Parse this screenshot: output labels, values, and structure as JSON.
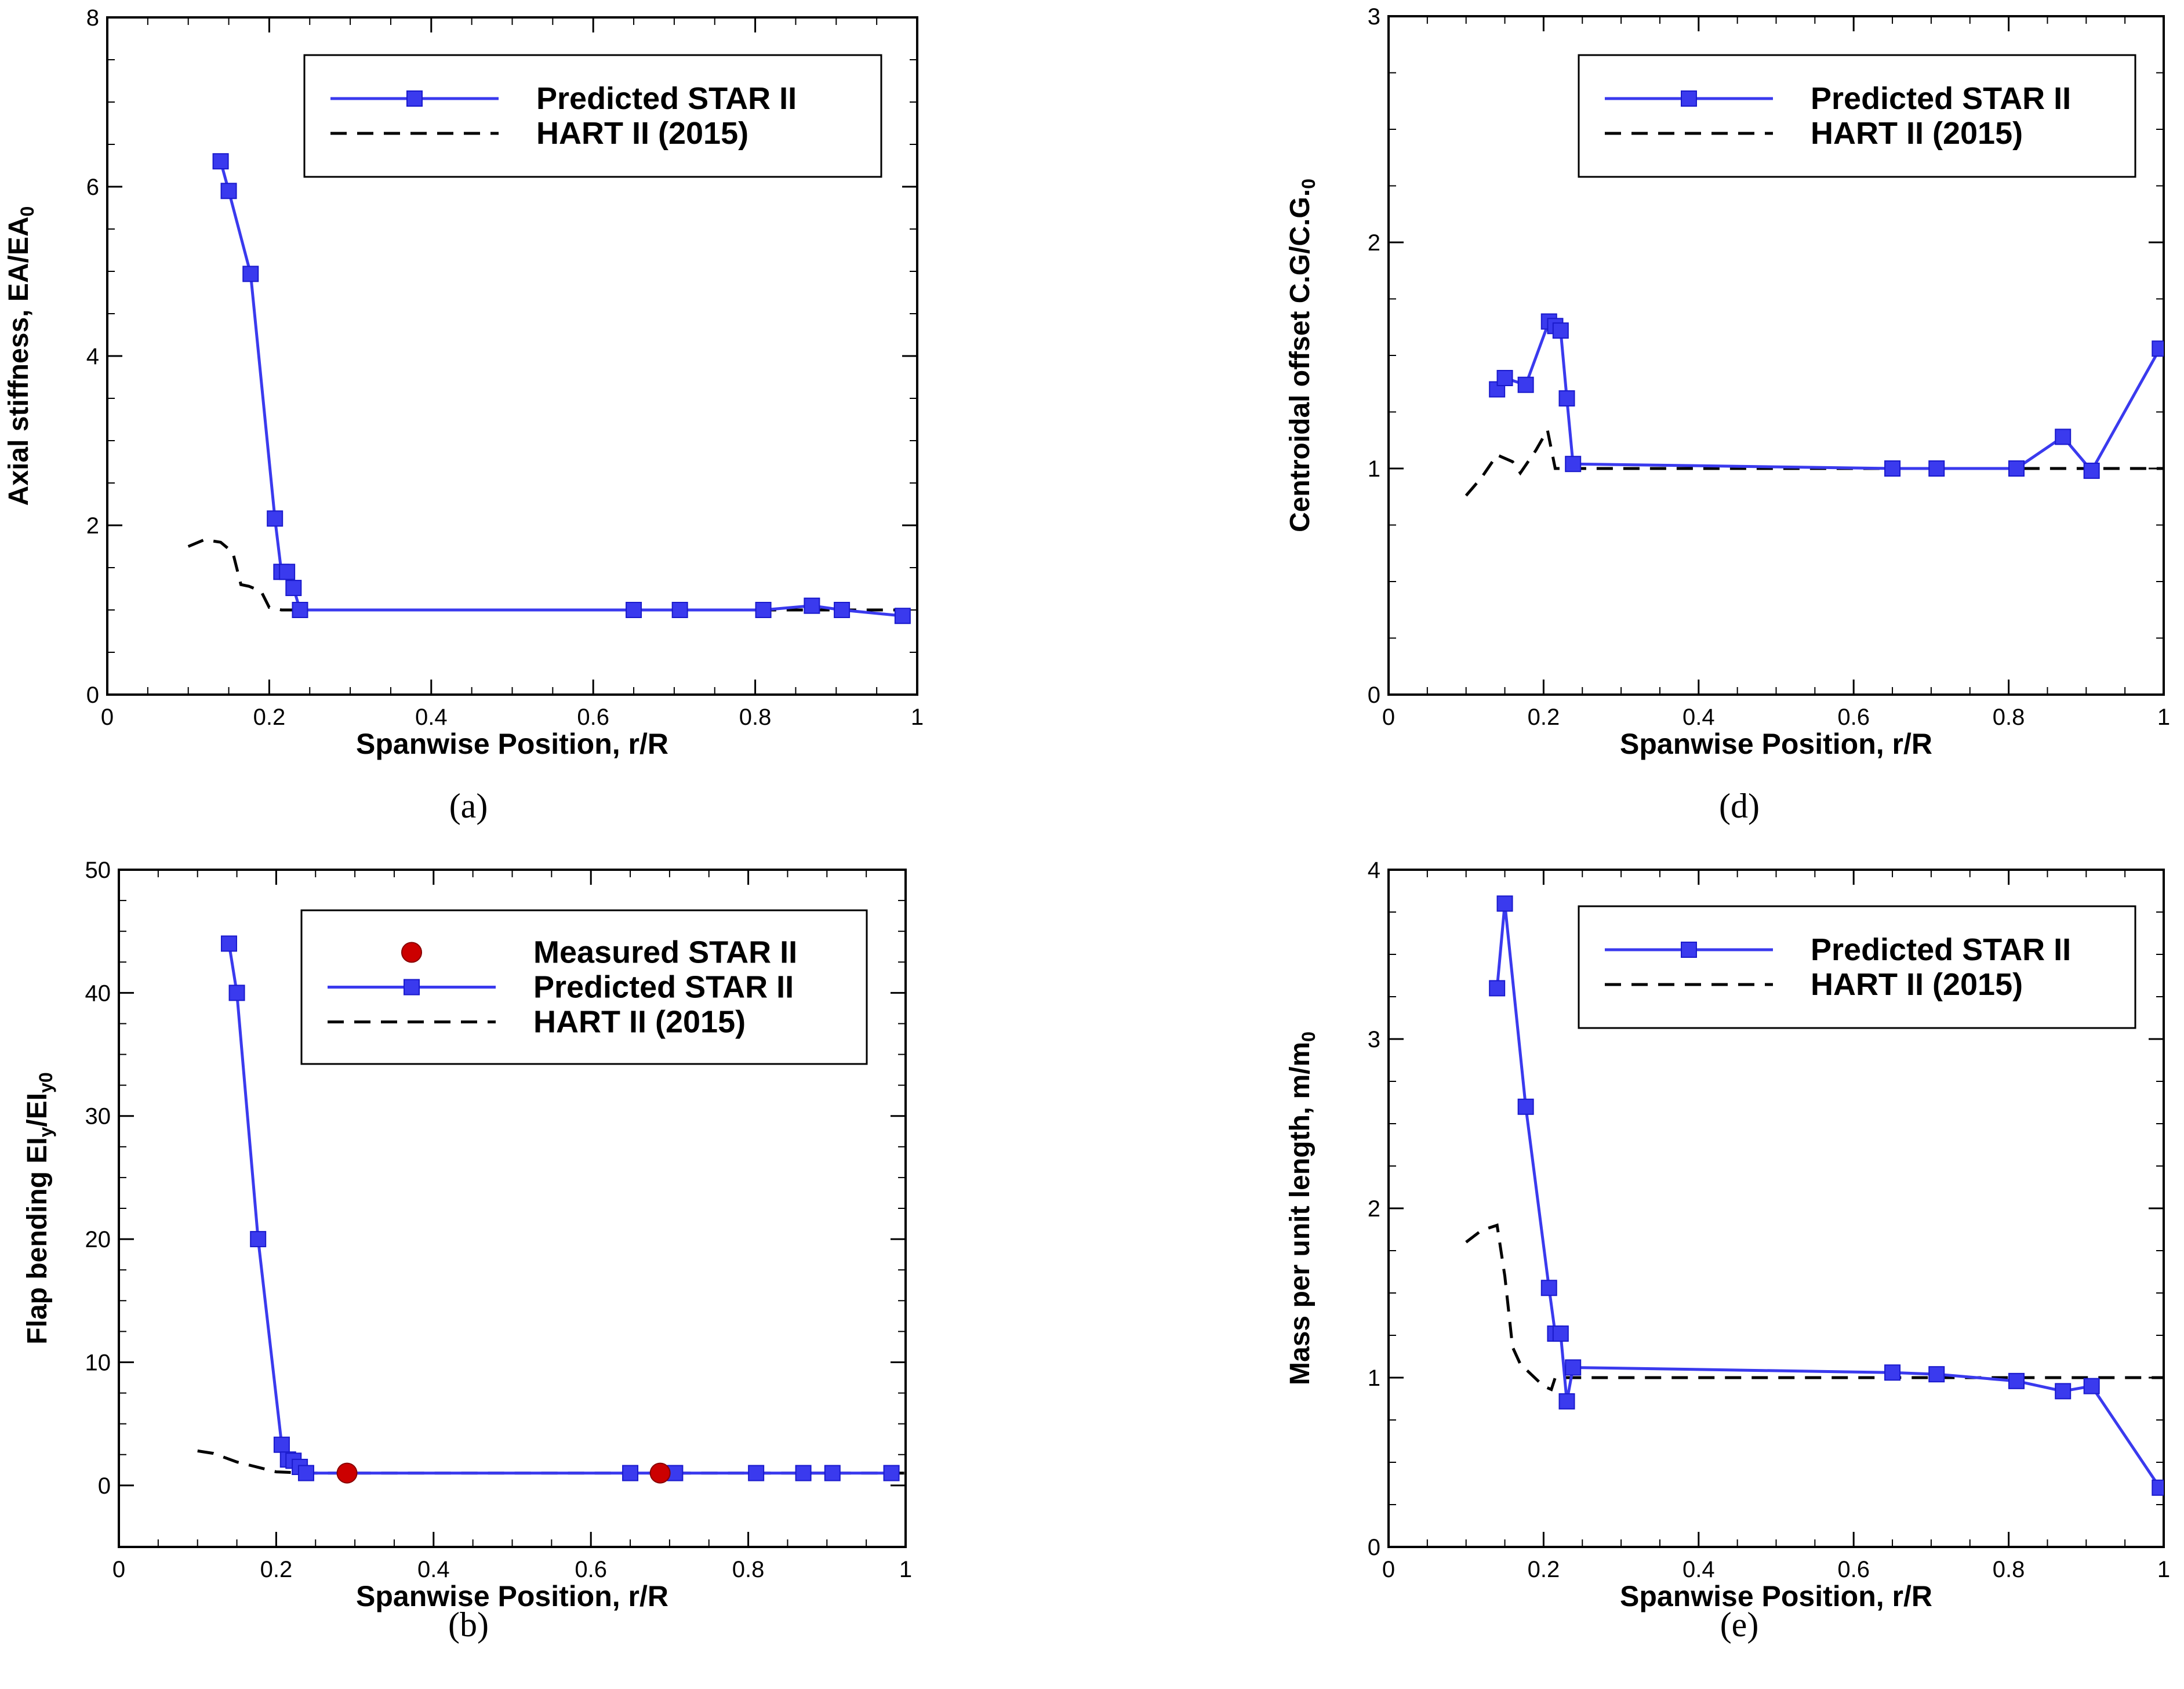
{
  "colors": {
    "predicted": "#3a3aee",
    "predicted_edge": "#1a1acc",
    "measured": "#cc0000",
    "hart": "#000000",
    "axis": "#000000"
  },
  "chart_data": [
    {
      "id": "a",
      "type": "line",
      "panel_label": "(a)",
      "xlabel": "Spanwise Position, r/R",
      "ylabel": "Axial stiffness, EA/EA",
      "ylabel_sub": "0",
      "xlim": [
        0,
        1
      ],
      "ylim": [
        0,
        8
      ],
      "xticks": [
        0,
        0.2,
        0.4,
        0.6,
        0.8,
        1
      ],
      "xtick_labels": [
        "0",
        "0.2",
        "0.4",
        "0.6",
        "0.8",
        "1"
      ],
      "yticks": [
        0,
        2,
        4,
        6,
        8
      ],
      "ytick_labels": [
        "0",
        "2",
        "4",
        "6",
        "8"
      ],
      "legend_position": "top-right",
      "series": [
        {
          "name": "Predicted STAR II",
          "style": "line-square",
          "x": [
            0.14,
            0.15,
            0.177,
            0.207,
            0.215,
            0.222,
            0.23,
            0.238,
            0.65,
            0.707,
            0.81,
            0.87,
            0.907,
            0.982
          ],
          "y": [
            6.3,
            5.95,
            4.97,
            2.08,
            1.45,
            1.45,
            1.26,
            1.0,
            1.0,
            1.0,
            1.0,
            1.05,
            1.0,
            0.93
          ]
        },
        {
          "name": "HART II (2015)",
          "style": "dashed",
          "x": [
            0.1,
            0.12,
            0.14,
            0.155,
            0.165,
            0.175,
            0.19,
            0.2,
            0.215,
            0.24,
            0.6,
            0.8,
            1.0
          ],
          "y": [
            1.75,
            1.83,
            1.8,
            1.68,
            1.3,
            1.28,
            1.22,
            1.03,
            1.0,
            1.0,
            1.0,
            1.0,
            1.0
          ]
        }
      ]
    },
    {
      "id": "b",
      "type": "line",
      "panel_label": "(b)",
      "xlabel": "Spanwise Position, r/R",
      "ylabel": "Flap bending EI",
      "ylabel_sub1": "y",
      "ylabel_mid": "/EI",
      "ylabel_sub2": "y0",
      "xlim": [
        0,
        1
      ],
      "ylim": [
        -5,
        50
      ],
      "xticks": [
        0,
        0.2,
        0.4,
        0.6,
        0.8,
        1
      ],
      "xtick_labels": [
        "0",
        "0.2",
        "0.4",
        "0.6",
        "0.8",
        "1"
      ],
      "yticks": [
        0,
        10,
        20,
        30,
        40,
        50
      ],
      "ytick_labels": [
        "0",
        "10",
        "20",
        "30",
        "40",
        "50"
      ],
      "legend_position": "top-right",
      "series": [
        {
          "name": "Measured STAR II",
          "style": "circle",
          "x": [
            0.29,
            0.688
          ],
          "y": [
            1.0,
            1.0
          ]
        },
        {
          "name": "Predicted STAR II",
          "style": "line-square",
          "x": [
            0.14,
            0.15,
            0.177,
            0.207,
            0.215,
            0.222,
            0.23,
            0.238,
            0.65,
            0.707,
            0.81,
            0.87,
            0.907,
            0.982
          ],
          "y": [
            44,
            40,
            20,
            3.3,
            2.1,
            2.0,
            1.5,
            1.0,
            1.0,
            1.0,
            1.0,
            1.0,
            1.0,
            1.0
          ]
        },
        {
          "name": "HART II (2015)",
          "style": "dashed",
          "x": [
            0.1,
            0.12,
            0.15,
            0.2,
            0.24,
            0.6,
            0.8,
            1.0
          ],
          "y": [
            2.8,
            2.6,
            1.9,
            1.1,
            1.0,
            1.0,
            1.0,
            1.0
          ]
        }
      ]
    },
    {
      "id": "d",
      "type": "line",
      "panel_label": "(d)",
      "xlabel": "Spanwise Position, r/R",
      "ylabel": "Centroidal offset  C.G/C.G.",
      "ylabel_sub": "0",
      "xlim": [
        0,
        1
      ],
      "ylim": [
        0,
        3
      ],
      "xticks": [
        0,
        0.2,
        0.4,
        0.6,
        0.8,
        1
      ],
      "xtick_labels": [
        "0",
        "0.2",
        "0.4",
        "0.6",
        "0.8",
        "1"
      ],
      "yticks": [
        0,
        1,
        2,
        3
      ],
      "ytick_labels": [
        "0",
        "1",
        "2",
        "3"
      ],
      "legend_position": "top-right",
      "series": [
        {
          "name": "Predicted STAR II",
          "style": "line-square",
          "x": [
            0.14,
            0.15,
            0.177,
            0.207,
            0.215,
            0.222,
            0.23,
            0.238,
            0.65,
            0.707,
            0.81,
            0.87,
            0.907,
            0.995
          ],
          "y": [
            1.35,
            1.4,
            1.37,
            1.65,
            1.63,
            1.61,
            1.31,
            1.02,
            1.0,
            1.0,
            1.0,
            1.14,
            0.99,
            1.53
          ]
        },
        {
          "name": "HART II (2015)",
          "style": "dashed",
          "x": [
            0.1,
            0.12,
            0.14,
            0.16,
            0.17,
            0.19,
            0.205,
            0.215,
            0.4,
            0.6,
            0.8,
            1.0
          ],
          "y": [
            0.88,
            0.96,
            1.06,
            1.03,
            0.98,
            1.08,
            1.17,
            1.0,
            1.0,
            1.0,
            1.0,
            1.0
          ]
        }
      ]
    },
    {
      "id": "e",
      "type": "line",
      "panel_label": "(e)",
      "xlabel": "Spanwise Position, r/R",
      "ylabel": "Mass per unit length, m/m",
      "ylabel_sub": "0",
      "xlim": [
        0,
        1
      ],
      "ylim": [
        0,
        4
      ],
      "xticks": [
        0,
        0.2,
        0.4,
        0.6,
        0.8,
        1
      ],
      "xtick_labels": [
        "0",
        "0.2",
        "0.4",
        "0.6",
        "0.8",
        "1"
      ],
      "yticks": [
        0,
        1,
        2,
        3,
        4
      ],
      "ytick_labels": [
        "0",
        "1",
        "2",
        "3",
        "4"
      ],
      "legend_position": "top-right",
      "series": [
        {
          "name": "Predicted STAR II",
          "style": "line-square",
          "x": [
            0.14,
            0.15,
            0.177,
            0.207,
            0.215,
            0.222,
            0.23,
            0.238,
            0.65,
            0.707,
            0.81,
            0.87,
            0.907,
            0.995
          ],
          "y": [
            3.3,
            3.8,
            2.6,
            1.53,
            1.26,
            1.26,
            0.86,
            1.06,
            1.03,
            1.02,
            0.98,
            0.92,
            0.95,
            0.35
          ]
        },
        {
          "name": "HART II (2015)",
          "style": "dashed",
          "x": [
            0.1,
            0.12,
            0.14,
            0.15,
            0.16,
            0.17,
            0.2,
            0.21,
            0.215,
            0.4,
            0.6,
            0.8,
            1.0
          ],
          "y": [
            1.8,
            1.87,
            1.9,
            1.6,
            1.18,
            1.08,
            0.95,
            0.93,
            1.0,
            1.0,
            1.0,
            1.0,
            1.0
          ]
        }
      ]
    }
  ]
}
